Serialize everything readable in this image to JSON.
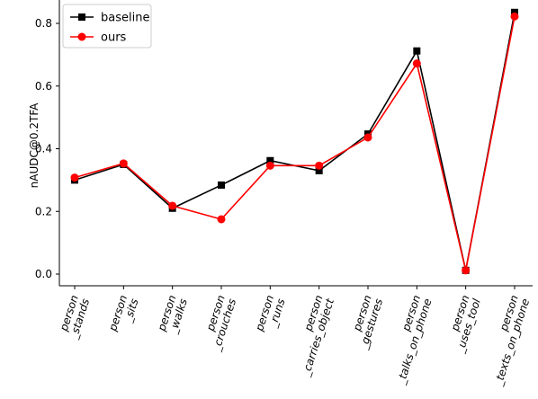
{
  "chart_data": {
    "type": "line",
    "categories": [
      [
        "person",
        "_stands"
      ],
      [
        "person",
        "_sits"
      ],
      [
        "person",
        "_walks"
      ],
      [
        "person",
        "_crouches"
      ],
      [
        "person",
        "_runs"
      ],
      [
        "person",
        "_carries_object"
      ],
      [
        "person",
        "_gestures"
      ],
      [
        "person",
        "_talks_on_phone"
      ],
      [
        "person",
        "_uses_tool"
      ],
      [
        "person",
        "_texts_on_phone"
      ]
    ],
    "series": [
      {
        "name": "baseline",
        "color": "#000000",
        "marker": "square",
        "values": [
          0.3,
          0.35,
          0.21,
          0.284,
          0.362,
          0.33,
          0.447,
          0.712,
          0.012,
          0.835
        ]
      },
      {
        "name": "ours",
        "color": "#ff0000",
        "marker": "circle",
        "values": [
          0.308,
          0.353,
          0.218,
          0.175,
          0.346,
          0.346,
          0.436,
          0.672,
          0.012,
          0.822
        ]
      }
    ],
    "ylabel": "nAUDC@0.2TFA",
    "xlabel": "",
    "yticks": [
      0.0,
      0.2,
      0.4,
      0.6,
      0.8
    ],
    "ytick_labels": [
      "0.0",
      "0.2",
      "0.4",
      "0.6",
      "0.8"
    ],
    "ylim": [
      -0.03,
      0.86
    ],
    "legend_position": "upper-left",
    "grid": false
  }
}
